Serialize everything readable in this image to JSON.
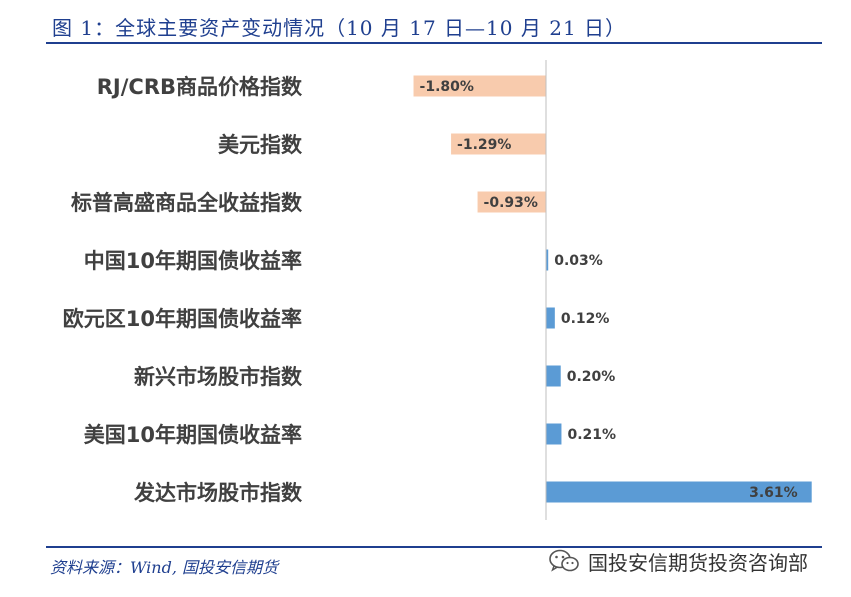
{
  "title": "图 1：全球主要资产变动情况（10 月 17 日—10 月 21 日）",
  "source": "资料来源：Wind, 国投安信期货",
  "brand": {
    "name": "国投安信期货投资咨询部",
    "icon": "wechat-icon"
  },
  "colors": {
    "accent": "#1f3f8f",
    "negative": "#f8cbad",
    "positive": "#5b9bd5"
  },
  "chart_data": {
    "type": "bar",
    "orientation": "horizontal",
    "categories": [
      "RJ/CRB商品价格指数",
      "美元指数",
      "标普高盛商品全收益指数",
      "中国10年期国债收益率",
      "欧元区10年期国债收益率",
      "新兴市场股市指数",
      "美国10年期国债收益率",
      "发达市场股市指数"
    ],
    "values": [
      -1.8,
      -1.29,
      -0.93,
      0.03,
      0.12,
      0.2,
      0.21,
      3.61
    ],
    "value_labels": [
      "-1.80%",
      "-1.29%",
      "-0.93%",
      "0.03%",
      "0.12%",
      "0.20%",
      "0.21%",
      "3.61%"
    ],
    "unit": "%",
    "grid": false,
    "legend": "none"
  }
}
